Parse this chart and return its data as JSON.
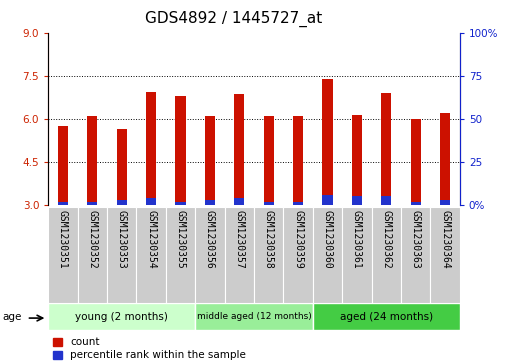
{
  "title": "GDS4892 / 1445727_at",
  "samples": [
    "GSM1230351",
    "GSM1230352",
    "GSM1230353",
    "GSM1230354",
    "GSM1230355",
    "GSM1230356",
    "GSM1230357",
    "GSM1230358",
    "GSM1230359",
    "GSM1230360",
    "GSM1230361",
    "GSM1230362",
    "GSM1230363",
    "GSM1230364"
  ],
  "count_values": [
    5.75,
    6.1,
    5.65,
    6.95,
    6.8,
    6.1,
    6.85,
    6.1,
    6.1,
    7.4,
    6.15,
    6.9,
    6.0,
    6.2
  ],
  "percentile_values": [
    0.02,
    0.02,
    0.03,
    0.04,
    0.02,
    0.03,
    0.04,
    0.02,
    0.02,
    0.06,
    0.05,
    0.05,
    0.02,
    0.03
  ],
  "bar_bottom": 3.0,
  "ylim_left": [
    3,
    9
  ],
  "ylim_right": [
    0,
    100
  ],
  "yticks_left": [
    3,
    4.5,
    6,
    7.5,
    9
  ],
  "yticks_right": [
    0,
    25,
    50,
    75,
    100
  ],
  "ytick_labels_right": [
    "0%",
    "25",
    "50",
    "75",
    "100%"
  ],
  "grid_lines": [
    4.5,
    6.0,
    7.5
  ],
  "count_color": "#cc1100",
  "percentile_color": "#2233cc",
  "group_labels": [
    "young (2 months)",
    "middle aged (12 months)",
    "aged (24 months)"
  ],
  "group_sample_counts": [
    5,
    4,
    5
  ],
  "group_bg_colors": [
    "#ccffcc",
    "#99ee99",
    "#44cc44"
  ],
  "sample_box_color": "#cccccc",
  "age_label": "age",
  "legend_items": [
    "count",
    "percentile rank within the sample"
  ],
  "title_fontsize": 11,
  "tick_fontsize": 7,
  "axis_color_left": "#cc2200",
  "axis_color_right": "#1122cc",
  "bar_width": 0.35
}
